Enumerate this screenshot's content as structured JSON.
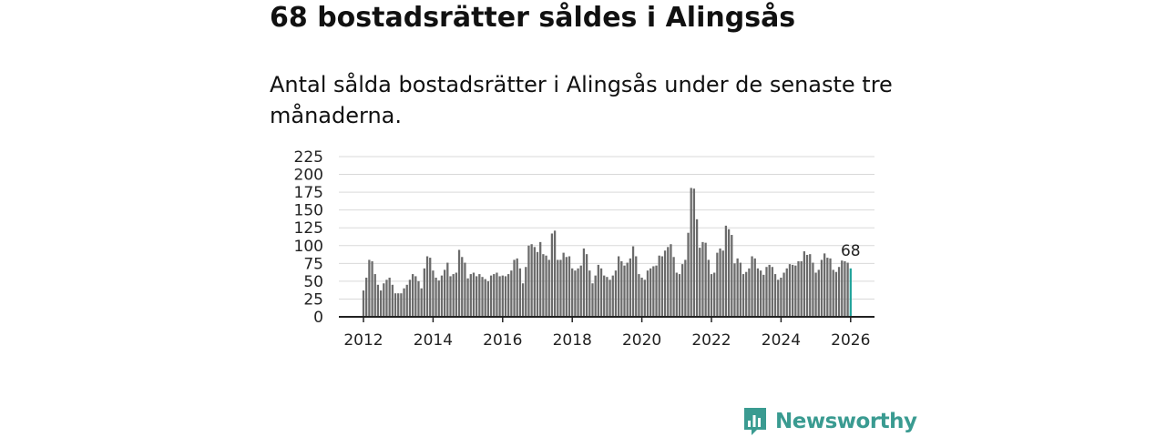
{
  "header": {
    "title": "68 bostadsrätter såldes i Alingsås",
    "subtitle": "Antal sålda bostadsrätter i Alingsås under de senaste tre månaderna."
  },
  "brand": {
    "name": "Newsworthy",
    "color": "#3a9b91"
  },
  "colors": {
    "bar": "#6b6b6b",
    "highlight": "#1fa39a",
    "grid": "#d9d9d9",
    "axis": "#222222"
  },
  "chart_data": {
    "type": "bar",
    "title": "Antal sålda bostadsrätter i Alingsås under de senaste tre månaderna",
    "xlabel": "",
    "ylabel": "",
    "ylim": [
      0,
      225
    ],
    "yticks": [
      0,
      25,
      50,
      75,
      100,
      125,
      150,
      175,
      200,
      225
    ],
    "xticks": [
      2012,
      2014,
      2016,
      2018,
      2020,
      2022,
      2024,
      2026
    ],
    "x_start": "2012-01",
    "x_end": "2026-01",
    "annotation": {
      "label": "68",
      "value": 68,
      "month": "2026-01"
    },
    "values": [
      37,
      55,
      80,
      78,
      60,
      45,
      37,
      47,
      52,
      55,
      45,
      33,
      33,
      33,
      40,
      45,
      52,
      60,
      57,
      50,
      40,
      68,
      85,
      83,
      65,
      55,
      51,
      58,
      66,
      76,
      57,
      60,
      62,
      94,
      84,
      76,
      54,
      60,
      62,
      57,
      60,
      56,
      53,
      50,
      58,
      60,
      62,
      57,
      58,
      57,
      60,
      65,
      80,
      82,
      68,
      47,
      70,
      100,
      102,
      98,
      91,
      105,
      88,
      86,
      80,
      117,
      121,
      80,
      80,
      90,
      84,
      85,
      68,
      65,
      68,
      72,
      96,
      88,
      65,
      47,
      58,
      73,
      68,
      58,
      56,
      52,
      58,
      65,
      85,
      78,
      72,
      76,
      82,
      99,
      85,
      60,
      55,
      52,
      65,
      68,
      71,
      72,
      86,
      85,
      93,
      98,
      102,
      84,
      62,
      60,
      74,
      80,
      118,
      181,
      180,
      137,
      97,
      105,
      104,
      80,
      60,
      62,
      90,
      96,
      93,
      128,
      123,
      115,
      75,
      82,
      76,
      60,
      63,
      68,
      85,
      82,
      68,
      65,
      59,
      70,
      73,
      70,
      60,
      52,
      55,
      62,
      68,
      74,
      73,
      72,
      78,
      78,
      92,
      87,
      88,
      76,
      62,
      66,
      80,
      89,
      83,
      82,
      66,
      63,
      70,
      79,
      78,
      76,
      68
    ]
  }
}
